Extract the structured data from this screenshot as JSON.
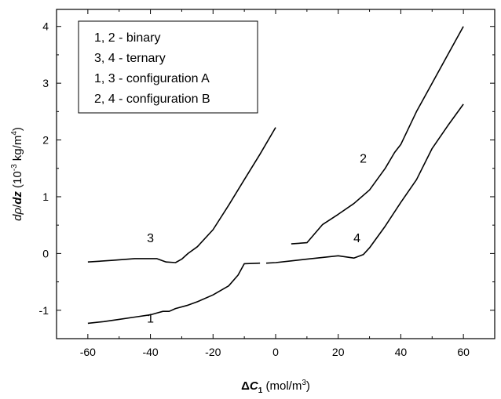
{
  "chart_data": {
    "type": "line",
    "xlabel": {
      "delta": "Δ",
      "var": "C",
      "sub": "1",
      "units": " (mol/m",
      "sup": "3",
      "close": ")"
    },
    "ylabel": {
      "d1": "d",
      "rho": "ρ",
      "slash": "/",
      "dz": "dz",
      "units_a": " (10",
      "exp": "-3",
      "units_b": " kg/m",
      "sup": "4",
      "close": ")"
    },
    "xlim": [
      -70,
      70
    ],
    "ylim": [
      -1.5,
      4.3
    ],
    "x_ticks": [
      -60,
      -40,
      -20,
      0,
      20,
      40,
      60
    ],
    "y_ticks": [
      -1,
      0,
      1,
      2,
      3,
      4
    ],
    "grid": false,
    "legend": {
      "placement": "top-left",
      "entries": [
        "1, 2 - binary",
        "3, 4 - ternary",
        "1, 3 - configuration A",
        "2, 4 - configuration B"
      ]
    },
    "series": [
      {
        "name": "1",
        "label_at": [
          -40,
          -1.22
        ],
        "segments": [
          [
            [
              -60,
              -1.23
            ],
            [
              -55,
              -1.2
            ],
            [
              -50,
              -1.16
            ],
            [
              -45,
              -1.12
            ],
            [
              -40,
              -1.08
            ],
            [
              -38,
              -1.05
            ],
            [
              -36,
              -1.02
            ],
            [
              -34,
              -1.02
            ],
            [
              -32,
              -0.97
            ],
            [
              -28,
              -0.91
            ],
            [
              -25,
              -0.85
            ],
            [
              -20,
              -0.73
            ],
            [
              -15,
              -0.57
            ],
            [
              -12,
              -0.38
            ],
            [
              -10,
              -0.18
            ],
            [
              -5,
              -0.17
            ]
          ]
        ]
      },
      {
        "name": "3",
        "label_at": [
          -40,
          0.2
        ],
        "segments": [
          [
            [
              -60,
              -0.15
            ],
            [
              -52,
              -0.12
            ],
            [
              -45,
              -0.09
            ],
            [
              -38,
              -0.09
            ],
            [
              -35,
              -0.15
            ],
            [
              -32,
              -0.16
            ],
            [
              -30,
              -0.1
            ],
            [
              -28,
              0.0
            ],
            [
              -25,
              0.12
            ],
            [
              -20,
              0.42
            ],
            [
              -15,
              0.85
            ],
            [
              -10,
              1.3
            ],
            [
              -5,
              1.75
            ],
            [
              0,
              2.22
            ]
          ]
        ]
      },
      {
        "name": "4",
        "label_at": [
          26,
          0.2
        ],
        "segments": [
          [
            [
              -3,
              -0.17
            ],
            [
              0,
              -0.16
            ],
            [
              5,
              -0.13
            ],
            [
              10,
              -0.1
            ],
            [
              15,
              -0.07
            ],
            [
              20,
              -0.04
            ],
            [
              25,
              -0.08
            ],
            [
              28,
              -0.02
            ],
            [
              30,
              0.1
            ],
            [
              35,
              0.48
            ],
            [
              40,
              0.9
            ],
            [
              45,
              1.3
            ],
            [
              50,
              1.85
            ],
            [
              55,
              2.25
            ],
            [
              60,
              2.63
            ]
          ]
        ]
      },
      {
        "name": "2",
        "label_at": [
          28,
          1.6
        ],
        "segments": [
          [
            [
              5,
              0.17
            ],
            [
              10,
              0.19
            ],
            [
              15,
              0.51
            ],
            [
              20,
              0.69
            ],
            [
              25,
              0.88
            ],
            [
              30,
              1.12
            ],
            [
              35,
              1.5
            ],
            [
              38,
              1.78
            ],
            [
              40,
              1.92
            ],
            [
              45,
              2.5
            ],
            [
              50,
              3.0
            ],
            [
              55,
              3.5
            ],
            [
              60,
              4.0
            ]
          ]
        ]
      }
    ]
  }
}
